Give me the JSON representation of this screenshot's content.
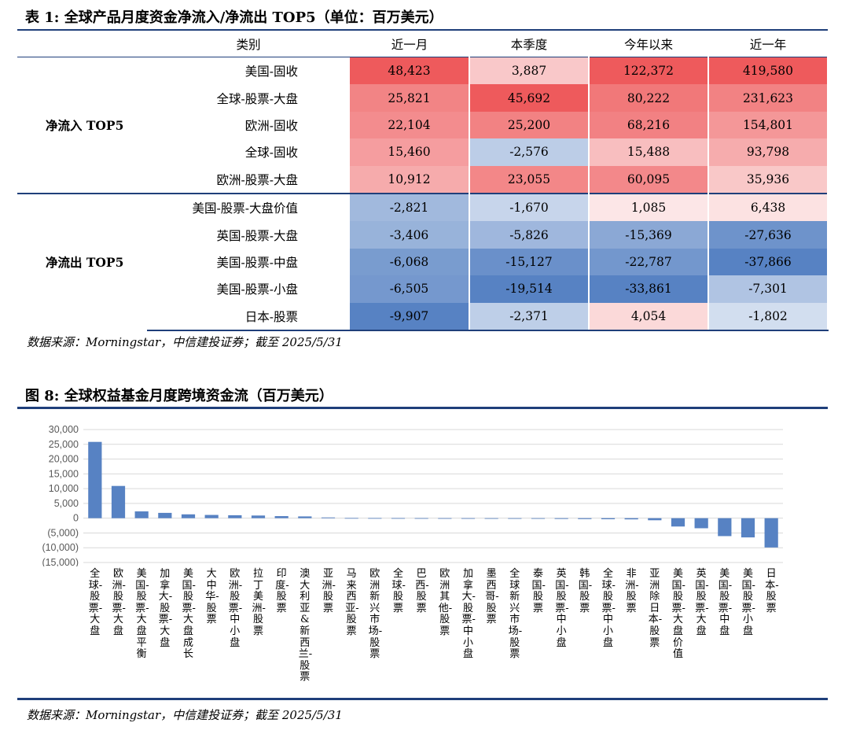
{
  "table1": {
    "title": "表 1: 全球产品月度资金净流入/净流出 TOP5（单位：百万美元）",
    "headers": [
      "类别",
      "近一月",
      "本季度",
      "今年以来",
      "近一年"
    ],
    "groups": [
      {
        "name": "净流入 TOP5",
        "rows": [
          {
            "category": "美国-固收",
            "values": [
              "48,423",
              "3,887",
              "122,372",
              "419,580"
            ]
          },
          {
            "category": "全球-股票-大盘",
            "values": [
              "25,821",
              "45,692",
              "80,222",
              "231,623"
            ]
          },
          {
            "category": "欧洲-固收",
            "values": [
              "22,104",
              "25,200",
              "68,216",
              "154,801"
            ]
          },
          {
            "category": "全球-固收",
            "values": [
              "15,460",
              "-2,576",
              "15,488",
              "93,798"
            ]
          },
          {
            "category": "欧洲-股票-大盘",
            "values": [
              "10,912",
              "23,055",
              "60,095",
              "35,936"
            ]
          }
        ]
      },
      {
        "name": "净流出 TOP5",
        "rows": [
          {
            "category": "美国-股票-大盘价值",
            "values": [
              "-2,821",
              "-1,670",
              "1,085",
              "6,438"
            ]
          },
          {
            "category": "英国-股票-大盘",
            "values": [
              "-3,406",
              "-5,826",
              "-15,369",
              "-27,636"
            ]
          },
          {
            "category": "美国-股票-中盘",
            "values": [
              "-6,068",
              "-15,127",
              "-22,787",
              "-37,866"
            ]
          },
          {
            "category": "美国-股票-小盘",
            "values": [
              "-6,505",
              "-19,514",
              "-33,861",
              "-7,301"
            ]
          },
          {
            "category": "日本-股票",
            "values": [
              "-9,907",
              "-2,371",
              "4,054",
              "-1,802"
            ]
          }
        ]
      }
    ],
    "source": "数据来源：Morningstar，中信建投证券；截至 2025/5/31"
  },
  "chart8": {
    "title": "图 8: 全球权益基金月度跨境资金流（百万美元）",
    "source": "数据来源：Morningstar，中信建投证券；截至 2025/5/31"
  },
  "colors": {
    "positive": "#ee5a5c",
    "negative": "#5782c3",
    "bar": "#5782c3",
    "rule": "#1f3f7a",
    "grid": "#d9d9d9"
  },
  "chart_data": {
    "type": "bar",
    "title": "图 8: 全球权益基金月度跨境资金流（百万美元）",
    "xlabel": "",
    "ylabel": "",
    "ylim": [
      -15000,
      30000
    ],
    "yticks": [
      30000,
      25000,
      20000,
      15000,
      10000,
      5000,
      0,
      -5000,
      -10000,
      -15000
    ],
    "ytick_labels": [
      "30,000",
      "25,000",
      "20,000",
      "15,000",
      "10,000",
      "5,000",
      "0",
      "(5,000)",
      "(10,000)",
      "(15,000)"
    ],
    "categories": [
      "全球-股票-大盘",
      "欧洲-股票-大盘",
      "美国-股票-大盘平衡",
      "加拿大-股票-大盘",
      "美国-股票-大盘成长",
      "大中华-股票",
      "欧洲-股票-中小盘",
      "拉丁美洲-股票",
      "印度-股票",
      "澳大利亚&新西兰-股票",
      "亚洲-股票",
      "马来西亚-股票",
      "欧洲新兴市场-股票",
      "全球-股票",
      "巴西-股票",
      "欧洲其他-股票",
      "加拿大-股票-中小盘",
      "墨西哥-股票",
      "全球新兴市场-股票",
      "泰国-股票",
      "英国-股票-中小盘",
      "韩国-股票",
      "全球-股票-中小盘",
      "非洲-股票",
      "亚洲除日本-股票",
      "美国-股票-大盘价值",
      "英国-股票-大盘",
      "美国-股票-中盘",
      "美国-股票-小盘",
      "日本-股票"
    ],
    "values": [
      25821,
      10912,
      2300,
      1800,
      1300,
      1100,
      1000,
      900,
      700,
      600,
      250,
      60,
      40,
      30,
      20,
      10,
      5,
      -5,
      -80,
      -200,
      -250,
      -300,
      -350,
      -400,
      -700,
      -2821,
      -3406,
      -6068,
      -6505,
      -9907
    ]
  }
}
